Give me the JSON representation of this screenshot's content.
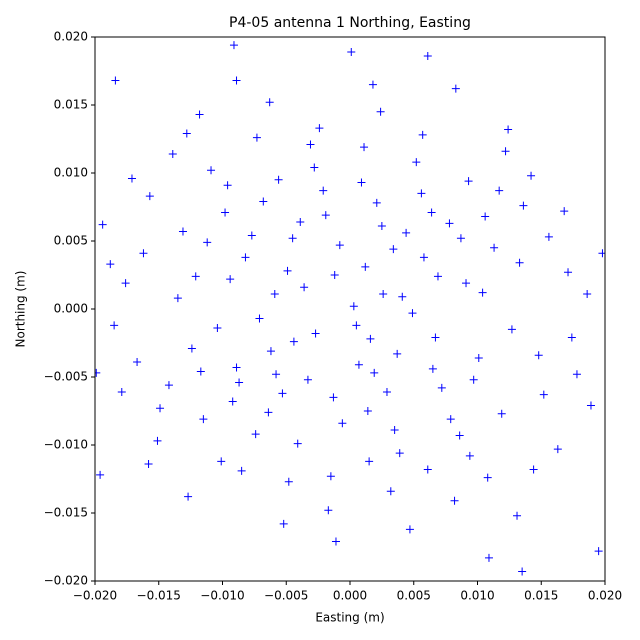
{
  "chart_data": {
    "type": "scatter",
    "title": "P4-05 antenna 1 Northing, Easting",
    "x_label": "Easting (m)",
    "y_label": "Northing (m)",
    "marker": "+",
    "color": "#0000ff",
    "xlim": [
      -0.02,
      0.02
    ],
    "ylim": [
      -0.02,
      0.02
    ],
    "xticks": [
      {
        "value": -0.02,
        "label": "−0.020"
      },
      {
        "value": -0.015,
        "label": "−0.015"
      },
      {
        "value": -0.01,
        "label": "−0.010"
      },
      {
        "value": -0.005,
        "label": "−0.005"
      },
      {
        "value": 0,
        "label": "0.000"
      },
      0.005,
      {
        "value": 0.01,
        "label": "0.010"
      },
      0.015,
      {
        "value": 0.02,
        "label": "0.020"
      }
    ],
    "yticks": [
      {
        "value": -0.02,
        "label": "−0.020"
      },
      {
        "value": -0.015,
        "label": "−0.015"
      },
      {
        "value": -0.01,
        "label": "−0.010"
      },
      {
        "value": -0.005,
        "label": "−0.005"
      },
      {
        "value": 0,
        "label": "0.000"
      },
      0.005,
      {
        "value": 0.01,
        "label": "0.010"
      },
      0.015,
      {
        "value": 0.02,
        "label": "0.020"
      }
    ],
    "x": [
      0.0012,
      -0.0045,
      0.0067,
      -0.0089,
      0.0021,
      -0.0013,
      0.0104,
      -0.0121,
      0.0035,
      -0.0056,
      0.0148,
      -0.0162,
      0.0003,
      -0.0027,
      0.0078,
      -0.0098,
      0.0119,
      -0.0074,
      0.0052,
      -0.0031,
      0.0015,
      -0.0142,
      0.0171,
      -0.0185,
      0.0093,
      -0.0109,
      0.0061,
      -0.0048,
      0.0136,
      -0.0157,
      0.0024,
      -0.0063,
      0.0082,
      -0.0017,
      0.0189,
      -0.0194,
      0.0041,
      -0.0036,
      0.0007,
      -0.0071,
      0.0113,
      -0.0124,
      0.0156,
      -0.0131,
      0.0029,
      -0.0082,
      0.0069,
      -0.0019,
      0.0097,
      -0.0058,
      0.0044,
      -0.0092,
      0.0127,
      -0.0167,
      0.0178,
      -0.0176,
      0.0009,
      -0.0041,
      0.0086,
      -0.0115,
      0.0056,
      -0.0068,
      0.0142,
      -0.0139,
      0.0032,
      -0.0024,
      0.0108,
      -0.0101,
      0.0163,
      -0.0151,
      0.0198,
      -0.0199,
      0.0018,
      -0.0089,
      0.0047,
      -0.0011,
      0.0124,
      -0.0118,
      0.0131,
      -0.0127,
      0.0001,
      0.0061,
      -0.0052,
      0.0135,
      0.0109,
      -0.0184,
      -0.0091,
      0.0083,
      0.0195,
      -0.0196,
      0.0005,
      -0.0008,
      0.0037,
      -0.0049,
      0.0058,
      -0.0062,
      0.0025,
      -0.0033,
      0.0072,
      -0.0077,
      0.0014,
      -0.0021,
      0.0091,
      -0.0104,
      0.0049,
      -0.0044,
      0.0101,
      -0.0112,
      0.0026,
      -0.0006,
      0.0133,
      -0.0135,
      0.0064,
      -0.0087,
      0.0039,
      -0.0028,
      0.0117,
      -0.0096,
      0.0079,
      -0.0064,
      0.0152,
      -0.0149,
      0.0168,
      -0.0171,
      0.0186,
      -0.0188,
      0.0174,
      -0.0179,
      0.0011,
      -0.0015,
      0.0057,
      -0.0073,
      0.0094,
      -0.0085,
      0.0122,
      -0.0128,
      0.0144,
      -0.0158,
      0.0016,
      -0.0039,
      0.0034,
      -0.0053,
      0.0087,
      -0.0094,
      0.0019,
      -0.0012,
      0.0065,
      -0.0059,
      0.0106,
      -0.0117
    ],
    "y": [
      0.0031,
      0.0052,
      -0.0021,
      -0.0043,
      0.0078,
      -0.0065,
      0.0012,
      0.0024,
      -0.0089,
      0.0095,
      -0.0034,
      0.0041,
      0.0002,
      -0.0018,
      0.0063,
      0.0071,
      -0.0077,
      -0.0092,
      0.0108,
      0.0121,
      -0.0112,
      -0.0056,
      0.0027,
      -0.0012,
      0.0094,
      0.0102,
      -0.0118,
      -0.0127,
      0.0076,
      0.0083,
      0.0145,
      0.0152,
      -0.0141,
      -0.0148,
      -0.0071,
      0.0062,
      0.0009,
      0.0016,
      -0.0041,
      -0.0007,
      0.0045,
      -0.0029,
      0.0053,
      0.0057,
      -0.0061,
      0.0038,
      0.0024,
      0.0069,
      -0.0052,
      -0.0048,
      0.0056,
      -0.0068,
      -0.0015,
      -0.0039,
      -0.0048,
      0.0019,
      0.0093,
      -0.0099,
      -0.0093,
      -0.0081,
      0.0085,
      0.0079,
      0.0098,
      0.0114,
      -0.0134,
      0.0133,
      -0.0124,
      -0.0112,
      -0.0103,
      -0.0097,
      0.0041,
      -0.0047,
      0.0165,
      0.0168,
      -0.0162,
      -0.0171,
      0.0132,
      0.0143,
      -0.0152,
      -0.0138,
      0.0189,
      0.0186,
      -0.0158,
      -0.0193,
      -0.0183,
      0.0168,
      0.0194,
      0.0162,
      -0.0178,
      -0.0122,
      -0.0012,
      0.0047,
      -0.0033,
      0.0028,
      0.0038,
      -0.0031,
      0.0061,
      -0.0052,
      -0.0058,
      0.0054,
      -0.0075,
      0.0087,
      0.0019,
      -0.0014,
      -0.0003,
      -0.0024,
      -0.0036,
      0.0049,
      0.0011,
      -0.0084,
      0.0034,
      0.0008,
      0.0071,
      -0.0054,
      -0.0106,
      0.0104,
      0.0087,
      0.0091,
      -0.0081,
      -0.0076,
      -0.0063,
      -0.0073,
      0.0072,
      0.0096,
      0.0011,
      0.0033,
      -0.0021,
      -0.0061,
      0.0119,
      -0.0123,
      0.0128,
      0.0126,
      -0.0108,
      -0.0119,
      0.0116,
      0.0129,
      -0.0118,
      -0.0114,
      -0.0022,
      0.0064,
      0.0044,
      -0.0062,
      0.0052,
      0.0022,
      -0.0047,
      0.0025,
      -0.0044,
      0.0011,
      0.0068,
      -0.0046
    ]
  }
}
